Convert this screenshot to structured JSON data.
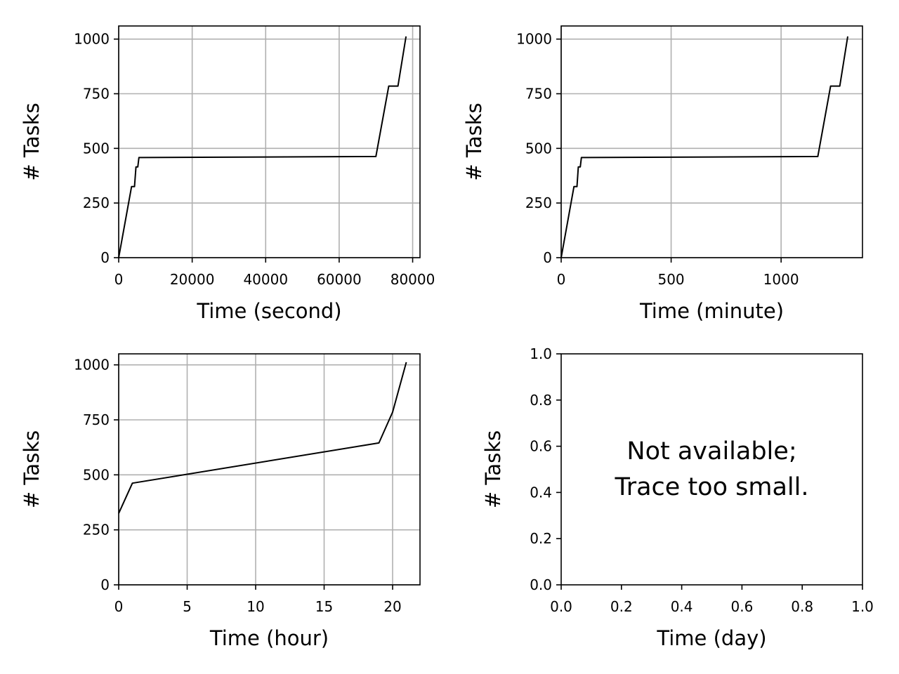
{
  "chart_data": [
    {
      "type": "line",
      "xlabel": "Time (second)",
      "ylabel": "# Tasks",
      "xlim": [
        0,
        82000
      ],
      "ylim": [
        0,
        1060
      ],
      "xticks": [
        0,
        20000,
        40000,
        60000,
        80000
      ],
      "yticks": [
        0,
        250,
        500,
        750,
        1000
      ],
      "grid": true,
      "x": [
        0,
        3500,
        4300,
        4700,
        5200,
        5500,
        6300,
        70000,
        73500,
        76000,
        78200
      ],
      "y": [
        0,
        325,
        325,
        415,
        415,
        458,
        458,
        463,
        785,
        785,
        1012
      ]
    },
    {
      "type": "line",
      "xlabel": "Time (minute)",
      "ylabel": "# Tasks",
      "xlim": [
        0,
        1370
      ],
      "ylim": [
        0,
        1060
      ],
      "xticks": [
        0,
        500,
        1000
      ],
      "yticks": [
        0,
        250,
        500,
        750,
        1000
      ],
      "grid": true,
      "x": [
        0,
        58,
        72,
        78,
        87,
        92,
        105,
        1167,
        1225,
        1267,
        1303
      ],
      "y": [
        0,
        325,
        325,
        415,
        415,
        458,
        458,
        463,
        785,
        785,
        1012
      ]
    },
    {
      "type": "line",
      "xlabel": "Time (hour)",
      "ylabel": "# Tasks",
      "xlim": [
        0,
        22
      ],
      "ylim": [
        0,
        1050
      ],
      "xticks": [
        0,
        5,
        10,
        15,
        20
      ],
      "yticks": [
        0,
        250,
        500,
        750,
        1000
      ],
      "grid": true,
      "x": [
        0,
        1,
        19,
        20,
        21
      ],
      "y": [
        325,
        462,
        645,
        785,
        1012
      ]
    },
    {
      "type": "line",
      "xlabel": "Time (day)",
      "ylabel": "# Tasks",
      "xlim": [
        0.0,
        1.0
      ],
      "ylim": [
        0.0,
        1.0
      ],
      "xticks": [
        "0.0",
        "0.2",
        "0.4",
        "0.6",
        "0.8",
        "1.0"
      ],
      "yticks": [
        "0.0",
        "0.2",
        "0.4",
        "0.6",
        "0.8",
        "1.0"
      ],
      "grid": false,
      "note": [
        "Not available;",
        "Trace too small."
      ],
      "x": [],
      "y": []
    }
  ]
}
